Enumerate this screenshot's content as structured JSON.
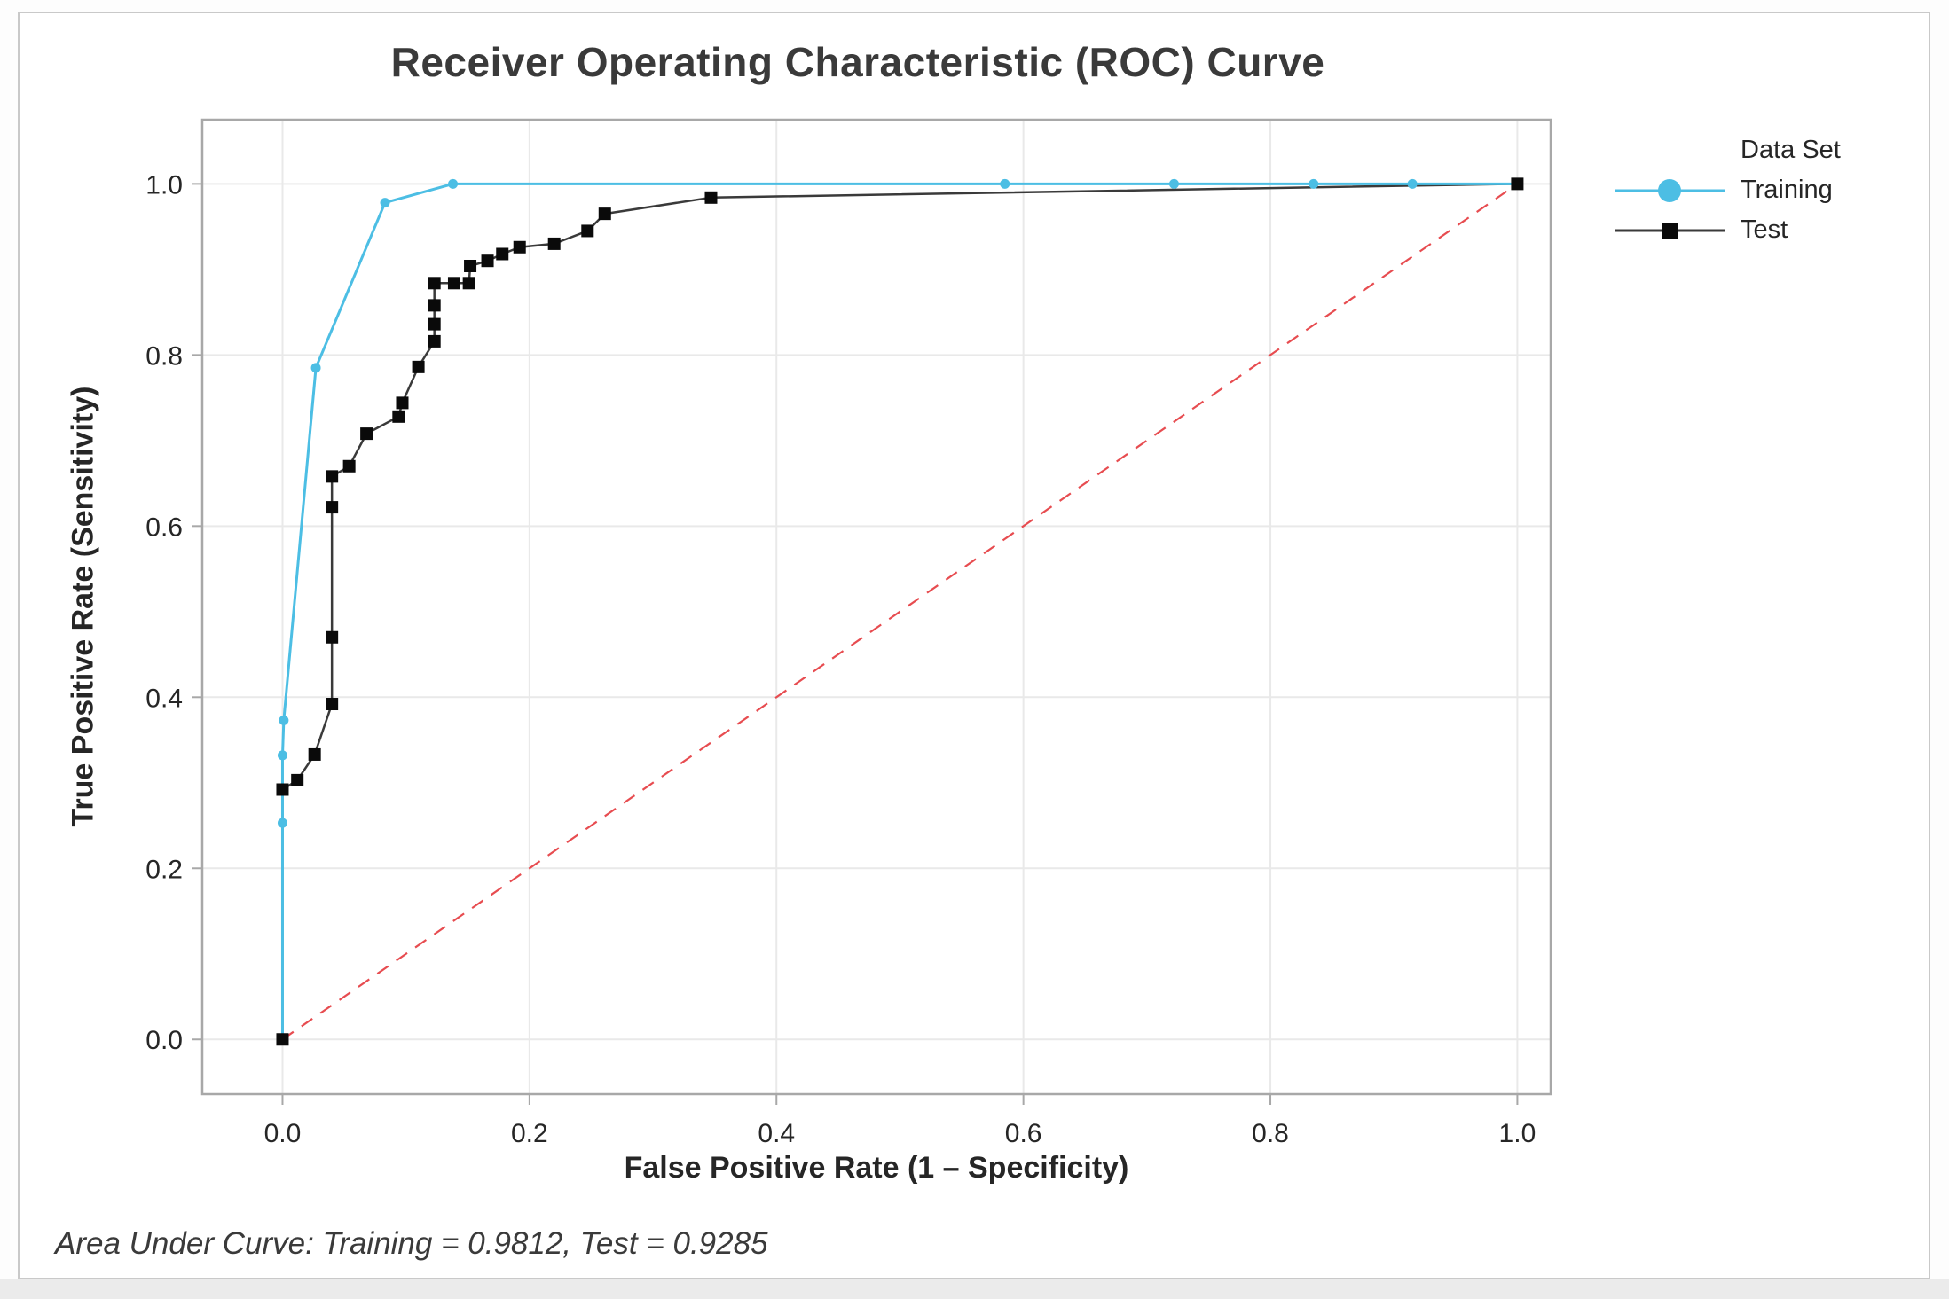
{
  "chart_data": {
    "type": "line",
    "title": "Receiver Operating Characteristic (ROC) Curve",
    "xlabel": "False Positive Rate (1 – Specificity)",
    "ylabel": "True Positive Rate (Sensitivity)",
    "xlim": [
      -0.065,
      1.027
    ],
    "ylim": [
      -0.064,
      1.075
    ],
    "xticks": [
      0.0,
      0.2,
      0.4,
      0.6,
      0.8,
      1.0
    ],
    "yticks": [
      0.0,
      0.2,
      0.4,
      0.6,
      0.8,
      1.0
    ],
    "grid": true,
    "legend": {
      "title": "Data Set",
      "position": "right"
    },
    "colors": {
      "grid": "#e9e9e9",
      "axis": "#a8a8a8",
      "training": "#4cbee4",
      "test_line": "#3a3a3a",
      "test_marker": "#0a0a0a",
      "reference": "#e74c50",
      "text": "#262626"
    },
    "series": [
      {
        "name": "Training",
        "marker": "circle",
        "color": "#4cbee4",
        "marker_color": "#4cbee4",
        "points": [
          [
            0,
            0
          ],
          [
            0,
            0.253
          ],
          [
            0,
            0.332
          ],
          [
            0.001,
            0.373
          ],
          [
            0.027,
            0.785
          ],
          [
            0.083,
            0.978
          ],
          [
            0.138,
            1.0
          ],
          [
            0.585,
            1.0
          ],
          [
            0.722,
            1.0
          ],
          [
            0.835,
            1.0
          ],
          [
            0.915,
            1.0
          ],
          [
            1.0,
            1.0
          ]
        ]
      },
      {
        "name": "Test",
        "marker": "square",
        "color": "#3a3a3a",
        "marker_color": "#0a0a0a",
        "points": [
          [
            0,
            0
          ],
          [
            0,
            0.292
          ],
          [
            0.012,
            0.303
          ],
          [
            0.026,
            0.333
          ],
          [
            0.04,
            0.392
          ],
          [
            0.04,
            0.47
          ],
          [
            0.04,
            0.622
          ],
          [
            0.04,
            0.658
          ],
          [
            0.054,
            0.67
          ],
          [
            0.068,
            0.708
          ],
          [
            0.094,
            0.728
          ],
          [
            0.097,
            0.744
          ],
          [
            0.11,
            0.786
          ],
          [
            0.123,
            0.816
          ],
          [
            0.123,
            0.836
          ],
          [
            0.123,
            0.858
          ],
          [
            0.123,
            0.884
          ],
          [
            0.139,
            0.884
          ],
          [
            0.151,
            0.884
          ],
          [
            0.152,
            0.904
          ],
          [
            0.166,
            0.91
          ],
          [
            0.178,
            0.918
          ],
          [
            0.192,
            0.926
          ],
          [
            0.22,
            0.93
          ],
          [
            0.247,
            0.945
          ],
          [
            0.261,
            0.965
          ],
          [
            0.347,
            0.984
          ],
          [
            1.0,
            1.0
          ]
        ]
      }
    ],
    "reference_line": {
      "style": "dashed",
      "color": "#e74c50",
      "points": [
        [
          0,
          0
        ],
        [
          1,
          1
        ]
      ]
    },
    "annotation": "Area Under Curve: Training = 0.9812, Test = 0.9285"
  }
}
